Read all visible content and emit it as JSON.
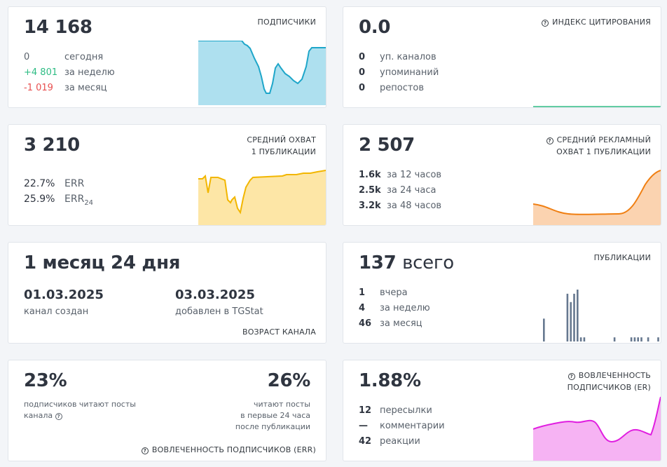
{
  "subscribers": {
    "value": "14 168",
    "title": "ПОДПИСЧИКИ",
    "rows": [
      {
        "value": "0",
        "label": "сегодня"
      },
      {
        "value": "+4 801",
        "label": "за неделю"
      },
      {
        "value": "-1 019",
        "label": "за месяц"
      }
    ],
    "colors": {
      "line": "#1ea6c9",
      "fill": "#aee0ef",
      "positive": "#2ebc84",
      "negative": "#e84f4f"
    }
  },
  "citation": {
    "value": "0.0",
    "title": "ИНДЕКС ЦИТИРОВАНИЯ",
    "rows": [
      {
        "value": "0",
        "label": "уп. каналов"
      },
      {
        "value": "0",
        "label": "упоминаний"
      },
      {
        "value": "0",
        "label": "репостов"
      }
    ],
    "colors": {
      "line": "#2ebc84"
    }
  },
  "reach": {
    "value": "3 210",
    "title_line1": "СРЕДНИЙ ОХВАТ",
    "title_line2": "1 ПУБЛИКАЦИИ",
    "rows": [
      {
        "value": "22.7%",
        "label": "ERR"
      },
      {
        "value": "25.9%",
        "label": "ERR",
        "label_sub": "24"
      }
    ],
    "colors": {
      "line": "#f2b600",
      "fill": "#fde6a6"
    }
  },
  "ad_reach": {
    "value": "2 507",
    "title_line1": "СРЕДНИЙ РЕКЛАМНЫЙ",
    "title_line2": "ОХВАТ 1 ПУБЛИКАЦИИ",
    "rows": [
      {
        "value": "1.6k",
        "label": "за 12 часов"
      },
      {
        "value": "2.5k",
        "label": "за 24 часа"
      },
      {
        "value": "3.2k",
        "label": "за 48 часов"
      }
    ],
    "colors": {
      "line": "#f07f12",
      "fill": "#fbd3b0"
    }
  },
  "age": {
    "value": "1 месяц 24 дня",
    "created_date": "01.03.2025",
    "created_label": "канал создан",
    "added_date": "03.03.2025",
    "added_label": "добавлен в TGStat",
    "title": "ВОЗРАСТ КАНАЛА"
  },
  "posts": {
    "value": "137",
    "value_suffix": "всего",
    "title": "ПУБЛИКАЦИИ",
    "rows": [
      {
        "value": "1",
        "label": "вчера"
      },
      {
        "value": "4",
        "label": "за неделю"
      },
      {
        "value": "46",
        "label": "за месяц"
      }
    ],
    "bars": [
      11,
      0,
      0,
      0,
      0,
      0,
      0,
      23,
      19,
      23,
      25,
      2,
      2,
      0,
      0,
      0,
      0,
      0,
      0,
      0,
      0,
      2,
      0,
      0,
      0,
      0,
      2,
      2,
      2,
      2,
      0,
      2,
      0,
      0,
      2
    ],
    "colors": {
      "bar": "#66788f"
    }
  },
  "err": {
    "value_left": "23%",
    "text_left_line1": "подписчиков читают посты",
    "text_left_line2": "канала",
    "value_right": "26%",
    "text_right_line1": "читают посты",
    "text_right_line2": "в первые 24 часа",
    "text_right_line3": "после публикации",
    "title": "ВОВЛЕЧЕННОСТЬ ПОДПИСЧИКОВ (ERR)"
  },
  "er": {
    "value": "1.88%",
    "title_line1": "ВОВЛЕЧЕННОСТЬ",
    "title_line2": "ПОДПИСЧИКОВ (ER)",
    "rows": [
      {
        "value": "12",
        "label": "пересылки"
      },
      {
        "value": "—",
        "label": "комментарии"
      },
      {
        "value": "42",
        "label": "реакции"
      }
    ],
    "colors": {
      "line": "#e01ee0",
      "fill": "#f6b3f3"
    }
  }
}
